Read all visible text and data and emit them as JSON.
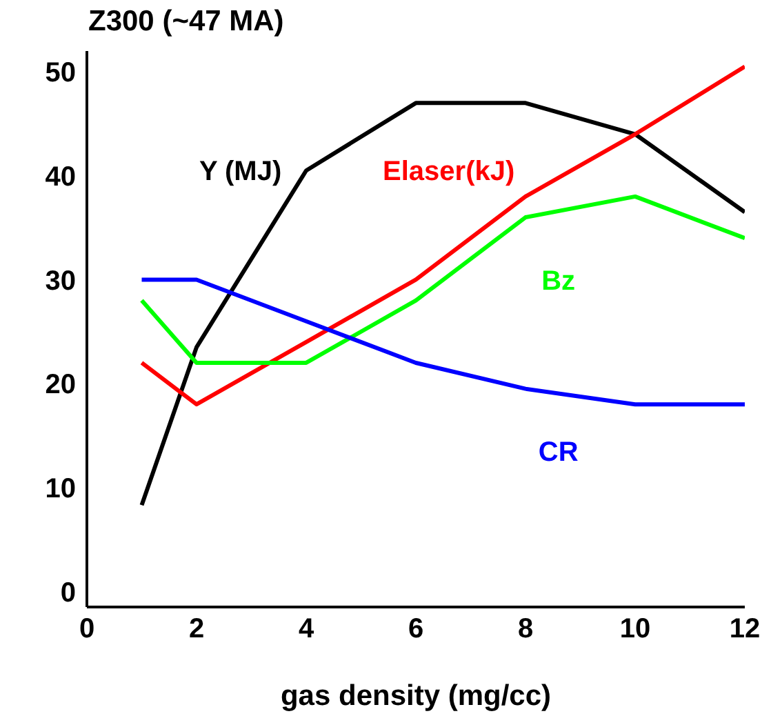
{
  "chart_data": {
    "type": "line",
    "title": "Z300 (~47 MA)",
    "xlabel": "gas density (mg/cc)",
    "x": [
      1,
      2,
      4,
      6,
      8,
      10,
      12
    ],
    "series": [
      {
        "name": "Y (MJ)",
        "color": "#000000",
        "values": [
          8.3,
          23.5,
          40.5,
          47,
          47,
          44,
          36.5
        ]
      },
      {
        "name": "Elaser(kJ)",
        "color": "#ff0000",
        "values": [
          22,
          18,
          24,
          30,
          38,
          44,
          50.5
        ]
      },
      {
        "name": "Bz",
        "color": "#00ff00",
        "values": [
          28,
          22,
          22,
          28,
          36,
          38,
          34
        ]
      },
      {
        "name": "CR",
        "color": "#0000ff",
        "values": [
          30,
          30,
          26,
          22,
          19.5,
          18,
          18
        ]
      }
    ],
    "xlim": [
      0,
      12
    ],
    "xticks": [
      0,
      2,
      4,
      6,
      8,
      10,
      12
    ],
    "ylim": [
      -1.5,
      52
    ],
    "yticks": [
      0,
      10,
      20,
      30,
      40,
      50
    ],
    "grid": false,
    "legend": false,
    "marker": "none",
    "line_style": "solid"
  }
}
